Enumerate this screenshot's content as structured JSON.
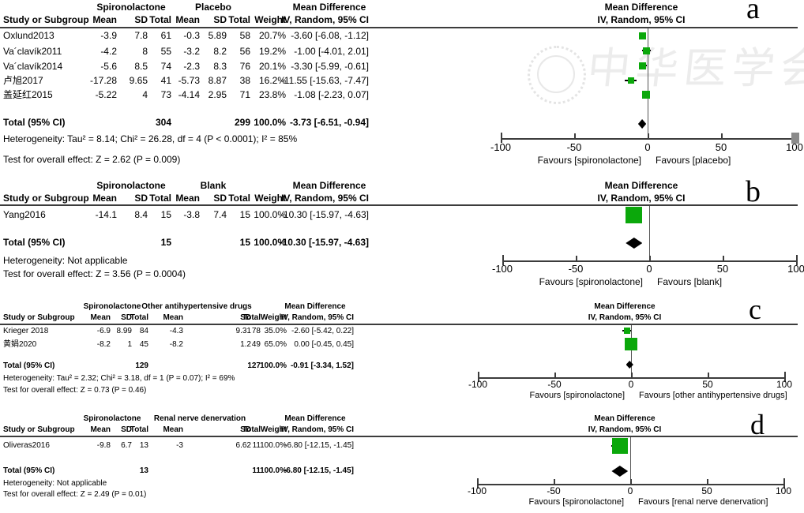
{
  "watermark": {
    "text": "中华医学会"
  },
  "colors": {
    "square_green": "#0BA80B",
    "diamond_black": "#000000",
    "axis_gray": "#3c3c3c"
  },
  "chart_data": [
    {
      "type": "scatter",
      "subtype": "forest-plot",
      "letter": "a",
      "group1_header": "Spironolactone",
      "group2_header": "Placebo",
      "effect_header": "Mean Difference",
      "method_header": "IV, Random, 95% CI",
      "columns": [
        "Study or Subgroup",
        "Mean",
        "SD",
        "Total",
        "Mean",
        "SD",
        "Total",
        "Weight",
        "IV, Random, 95% CI"
      ],
      "studies": [
        {
          "name": "Oxlund2013",
          "mean_t": "-3.9",
          "sd_t": "7.8",
          "n_t": "61",
          "mean_c": "-0.3",
          "sd_c": "5.89",
          "n_c": "58",
          "weight": "20.7%",
          "ci_label": "-3.60 [-6.08, -1.12]",
          "estimate": -3.6,
          "ci_low": -6.08,
          "ci_high": -1.12,
          "weight_pct": 20.7
        },
        {
          "name": "Va´clavík2011",
          "mean_t": "-4.2",
          "sd_t": "8",
          "n_t": "55",
          "mean_c": "-3.2",
          "sd_c": "8.2",
          "n_c": "56",
          "weight": "19.2%",
          "ci_label": "-1.00 [-4.01, 2.01]",
          "estimate": -1.0,
          "ci_low": -4.01,
          "ci_high": 2.01,
          "weight_pct": 19.2
        },
        {
          "name": "Va´clavík2014",
          "mean_t": "-5.6",
          "sd_t": "8.5",
          "n_t": "74",
          "mean_c": "-2.3",
          "sd_c": "8.3",
          "n_c": "76",
          "weight": "20.1%",
          "ci_label": "-3.30 [-5.99, -0.61]",
          "estimate": -3.3,
          "ci_low": -5.99,
          "ci_high": -0.61,
          "weight_pct": 20.1
        },
        {
          "name": "卢旭2017",
          "mean_t": "-17.28",
          "sd_t": "9.65",
          "n_t": "41",
          "mean_c": "-5.73",
          "sd_c": "8.87",
          "n_c": "38",
          "weight": "16.2%",
          "ci_label": "-11.55 [-15.63, -7.47]",
          "estimate": -11.55,
          "ci_low": -15.63,
          "ci_high": -7.47,
          "weight_pct": 16.2
        },
        {
          "name": "盖延红2015",
          "mean_t": "-5.22",
          "sd_t": "4",
          "n_t": "73",
          "mean_c": "-4.14",
          "sd_c": "2.95",
          "n_c": "71",
          "weight": "23.8%",
          "ci_label": "-1.08 [-2.23, 0.07]",
          "estimate": -1.08,
          "ci_low": -2.23,
          "ci_high": 0.07,
          "weight_pct": 23.8
        }
      ],
      "total": {
        "label": "Total (95% CI)",
        "n_t": "304",
        "n_c": "299",
        "weight": "100.0%",
        "ci_label": "-3.73 [-6.51, -0.94]",
        "estimate": -3.73,
        "ci_low": -6.51,
        "ci_high": -0.94
      },
      "heterogeneity": "Heterogeneity: Tau² = 8.14; Chi² = 26.28, df = 4 (P < 0.0001); I² = 85%",
      "overall_test": "Test for overall effect: Z = 2.62 (P = 0.009)",
      "xlim": [
        -100,
        100
      ],
      "xticks": [
        "-100",
        "-50",
        "0",
        "50",
        "100"
      ],
      "favours_left": "Favours [spironolactone]",
      "favours_right": "Favours [placebo]"
    },
    {
      "type": "scatter",
      "subtype": "forest-plot",
      "letter": "b",
      "group1_header": "Spironolactone",
      "group2_header": "Blank",
      "effect_header": "Mean Difference",
      "method_header": "IV, Random, 95% CI",
      "columns": [
        "Study or Subgroup",
        "Mean",
        "SD",
        "Total",
        "Mean",
        "SD",
        "Total",
        "Weight",
        "IV, Random, 95% CI"
      ],
      "studies": [
        {
          "name": "Yang2016",
          "mean_t": "-14.1",
          "sd_t": "8.4",
          "n_t": "15",
          "mean_c": "-3.8",
          "sd_c": "7.4",
          "n_c": "15",
          "weight": "100.0%",
          "ci_label": "-10.30 [-15.97, -4.63]",
          "estimate": -10.3,
          "ci_low": -15.97,
          "ci_high": -4.63,
          "weight_pct": 100.0
        }
      ],
      "total": {
        "label": "Total (95% CI)",
        "n_t": "15",
        "n_c": "15",
        "weight": "100.0%",
        "ci_label": "-10.30 [-15.97, -4.63]",
        "estimate": -10.3,
        "ci_low": -15.97,
        "ci_high": -4.63
      },
      "heterogeneity": "Heterogeneity: Not applicable",
      "overall_test": "Test for overall effect: Z = 3.56 (P = 0.0004)",
      "xlim": [
        -100,
        100
      ],
      "xticks": [
        "-100",
        "-50",
        "0",
        "50",
        "100"
      ],
      "favours_left": "Favours [spironolactone]",
      "favours_right": "Favours [blank]"
    },
    {
      "type": "scatter",
      "subtype": "forest-plot",
      "letter": "c",
      "group1_header": "Spironolactone",
      "group2_header": "Other antihypertensive drugs",
      "effect_header": "Mean Difference",
      "method_header": "IV, Random, 95% CI",
      "columns": [
        "Study or Subgroup",
        "Mean",
        "SD",
        "Total",
        "Mean",
        "SD",
        "Total",
        "Weight",
        "IV, Random, 95% CI"
      ],
      "studies": [
        {
          "name": "Krieger 2018",
          "mean_t": "-6.9",
          "sd_t": "8.99",
          "n_t": "84",
          "mean_c": "-4.3",
          "sd_c": "9.31",
          "n_c": "78",
          "weight": "35.0%",
          "ci_label": "-2.60 [-5.42, 0.22]",
          "estimate": -2.6,
          "ci_low": -5.42,
          "ci_high": 0.22,
          "weight_pct": 35.0
        },
        {
          "name": "黄娟2020",
          "mean_t": "-8.2",
          "sd_t": "1",
          "n_t": "45",
          "mean_c": "-8.2",
          "sd_c": "1.2",
          "n_c": "49",
          "weight": "65.0%",
          "ci_label": "0.00 [-0.45, 0.45]",
          "estimate": 0.0,
          "ci_low": -0.45,
          "ci_high": 0.45,
          "weight_pct": 65.0
        }
      ],
      "total": {
        "label": "Total (95% CI)",
        "n_t": "129",
        "n_c": "127",
        "weight": "100.0%",
        "ci_label": "-0.91 [-3.34, 1.52]",
        "estimate": -0.91,
        "ci_low": -3.34,
        "ci_high": 1.52
      },
      "heterogeneity": "Heterogeneity: Tau² = 2.32; Chi² = 3.18, df = 1 (P = 0.07); I² = 69%",
      "overall_test": "Test for overall effect: Z = 0.73 (P = 0.46)",
      "xlim": [
        -100,
        100
      ],
      "xticks": [
        "-100",
        "-50",
        "0",
        "50",
        "100"
      ],
      "favours_left": "Favours [spironolactone]",
      "favours_right": "Favours [other antihypertensive drugs]"
    },
    {
      "type": "scatter",
      "subtype": "forest-plot",
      "letter": "d",
      "group1_header": "Spironolactone",
      "group2_header": "Renal nerve denervation",
      "effect_header": "Mean Difference",
      "method_header": "IV, Random, 95% CI",
      "columns": [
        "Study or Subgroup",
        "Mean",
        "SD",
        "Total",
        "Mean",
        "SD",
        "Total",
        "Weight",
        "IV, Random, 95% CI"
      ],
      "studies": [
        {
          "name": "Oliveras2016",
          "mean_t": "-9.8",
          "sd_t": "6.7",
          "n_t": "13",
          "mean_c": "-3",
          "sd_c": "6.62",
          "n_c": "11",
          "weight": "100.0%",
          "ci_label": "-6.80 [-12.15, -1.45]",
          "estimate": -6.8,
          "ci_low": -12.15,
          "ci_high": -1.45,
          "weight_pct": 100.0
        }
      ],
      "total": {
        "label": "Total (95% CI)",
        "n_t": "13",
        "n_c": "11",
        "weight": "100.0%",
        "ci_label": "-6.80 [-12.15, -1.45]",
        "estimate": -6.8,
        "ci_low": -12.15,
        "ci_high": -1.45
      },
      "heterogeneity": "Heterogeneity: Not applicable",
      "overall_test": "Test for overall effect: Z = 2.49 (P = 0.01)",
      "xlim": [
        -100,
        100
      ],
      "xticks": [
        "-100",
        "-50",
        "0",
        "50",
        "100"
      ],
      "favours_left": "Favours [spironolactone]",
      "favours_right": "Favours [renal nerve denervation]"
    }
  ]
}
